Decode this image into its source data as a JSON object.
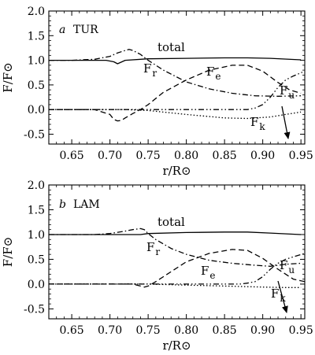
{
  "chart_data": [
    {
      "type": "line",
      "panel_letter": "a",
      "panel_tag": "TUR",
      "ylabel": "F/F⊙",
      "xlabel": "r/R⊙",
      "xlim": [
        0.62,
        0.955
      ],
      "ylim": [
        -0.7,
        2.0
      ],
      "xticks": [
        0.65,
        0.7,
        0.75,
        0.8,
        0.85,
        0.9,
        0.95
      ],
      "xtick_labels": [
        "0.65",
        "0.70",
        "0.75",
        "0.80",
        "0.85",
        "0.90",
        "0.95"
      ],
      "yticks": [
        -0.5,
        0.0,
        0.5,
        1.0,
        1.5,
        2.0
      ],
      "ytick_labels": [
        "-0.5",
        "0.0",
        "0.5",
        "1.0",
        "1.5",
        "2.0"
      ],
      "grid": false,
      "legend": "none",
      "labels": {
        "total": "total",
        "fr_main": "F",
        "fr_sub": "r",
        "fe_main": "F",
        "fe_sub": "e",
        "fk_main": "F",
        "fk_sub": "k",
        "fu_main": "F",
        "fu_sub": "u"
      },
      "series": [
        {
          "id": "total",
          "style": "solid",
          "x": [
            0.62,
            0.65,
            0.68,
            0.695,
            0.705,
            0.71,
            0.72,
            0.75,
            0.8,
            0.85,
            0.88,
            0.91,
            0.95
          ],
          "y": [
            1.0,
            1.0,
            1.0,
            1.0,
            0.97,
            0.93,
            1.0,
            1.03,
            1.04,
            1.05,
            1.05,
            1.04,
            1.01
          ]
        },
        {
          "id": "F_r",
          "style": "dashdot",
          "x": [
            0.62,
            0.65,
            0.68,
            0.7,
            0.71,
            0.72,
            0.725,
            0.73,
            0.74,
            0.75,
            0.77,
            0.8,
            0.83,
            0.86,
            0.89,
            0.92,
            0.95
          ],
          "y": [
            1.0,
            1.0,
            1.02,
            1.08,
            1.15,
            1.2,
            1.22,
            1.2,
            1.12,
            1.0,
            0.8,
            0.56,
            0.42,
            0.33,
            0.28,
            0.27,
            0.28
          ]
        },
        {
          "id": "F_e",
          "style": "dashed",
          "x": [
            0.62,
            0.68,
            0.7,
            0.705,
            0.71,
            0.715,
            0.72,
            0.73,
            0.74,
            0.75,
            0.77,
            0.8,
            0.83,
            0.86,
            0.88,
            0.9,
            0.92,
            0.935,
            0.95
          ],
          "y": [
            0.0,
            0.0,
            -0.1,
            -0.2,
            -0.23,
            -0.22,
            -0.17,
            -0.08,
            0.0,
            0.1,
            0.35,
            0.6,
            0.8,
            0.9,
            0.9,
            0.78,
            0.55,
            0.4,
            0.33
          ]
        },
        {
          "id": "F_k",
          "style": "dotted",
          "x": [
            0.62,
            0.72,
            0.75,
            0.8,
            0.85,
            0.88,
            0.91,
            0.93,
            0.95
          ],
          "y": [
            0.0,
            0.0,
            -0.02,
            -0.1,
            -0.17,
            -0.18,
            -0.15,
            -0.1,
            -0.05
          ]
        },
        {
          "id": "F_u",
          "style": "dashdotdot",
          "x": [
            0.62,
            0.85,
            0.88,
            0.89,
            0.9,
            0.91,
            0.92,
            0.93,
            0.94,
            0.955
          ],
          "y": [
            0.0,
            0.0,
            0.0,
            0.03,
            0.1,
            0.25,
            0.45,
            0.6,
            0.68,
            0.78
          ]
        }
      ]
    },
    {
      "type": "line",
      "panel_letter": "b",
      "panel_tag": "LAM",
      "ylabel": "F/F⊙",
      "xlabel": "r/R⊙",
      "xlim": [
        0.62,
        0.955
      ],
      "ylim": [
        -0.7,
        2.0
      ],
      "xticks": [
        0.65,
        0.7,
        0.75,
        0.8,
        0.85,
        0.9,
        0.95
      ],
      "xtick_labels": [
        "0.65",
        "0.70",
        "0.75",
        "0.80",
        "0.85",
        "0.90",
        "0.95"
      ],
      "yticks": [
        -0.5,
        0.0,
        0.5,
        1.0,
        1.5,
        2.0
      ],
      "ytick_labels": [
        "-0.5",
        "0.0",
        "0.5",
        "1.0",
        "1.5",
        "2.0"
      ],
      "grid": false,
      "legend": "none",
      "labels": {
        "total": "total",
        "fr_main": "F",
        "fr_sub": "r",
        "fe_main": "F",
        "fe_sub": "e",
        "fk_main": "F",
        "fk_sub": "k",
        "fu_main": "F",
        "fu_sub": "u"
      },
      "series": [
        {
          "id": "total",
          "style": "solid",
          "x": [
            0.62,
            0.7,
            0.74,
            0.75,
            0.8,
            0.85,
            0.88,
            0.91,
            0.95
          ],
          "y": [
            1.0,
            1.0,
            1.0,
            1.02,
            1.04,
            1.05,
            1.05,
            1.03,
            1.0
          ]
        },
        {
          "id": "F_r",
          "style": "dashdot",
          "x": [
            0.62,
            0.68,
            0.7,
            0.72,
            0.73,
            0.74,
            0.745,
            0.75,
            0.76,
            0.78,
            0.8,
            0.83,
            0.86,
            0.89,
            0.91,
            0.93,
            0.95
          ],
          "y": [
            1.0,
            1.0,
            1.02,
            1.07,
            1.1,
            1.12,
            1.1,
            1.02,
            0.9,
            0.72,
            0.6,
            0.48,
            0.42,
            0.38,
            0.36,
            0.4,
            0.42
          ]
        },
        {
          "id": "F_e",
          "style": "dashed",
          "x": [
            0.62,
            0.73,
            0.74,
            0.745,
            0.75,
            0.76,
            0.78,
            0.8,
            0.83,
            0.86,
            0.88,
            0.9,
            0.92,
            0.94,
            0.955
          ],
          "y": [
            0.0,
            0.0,
            -0.04,
            -0.06,
            -0.04,
            0.05,
            0.25,
            0.45,
            0.62,
            0.7,
            0.68,
            0.52,
            0.3,
            0.1,
            0.05
          ]
        },
        {
          "id": "F_k",
          "style": "dotted",
          "x": [
            0.62,
            0.75,
            0.8,
            0.85,
            0.9,
            0.93,
            0.95
          ],
          "y": [
            0.0,
            0.0,
            -0.02,
            -0.04,
            -0.06,
            -0.07,
            -0.07
          ]
        },
        {
          "id": "F_u",
          "style": "dashdotdot",
          "x": [
            0.62,
            0.87,
            0.88,
            0.89,
            0.9,
            0.91,
            0.92,
            0.93,
            0.94,
            0.955
          ],
          "y": [
            0.0,
            0.0,
            0.02,
            0.05,
            0.15,
            0.3,
            0.42,
            0.5,
            0.55,
            0.62
          ]
        }
      ]
    }
  ]
}
